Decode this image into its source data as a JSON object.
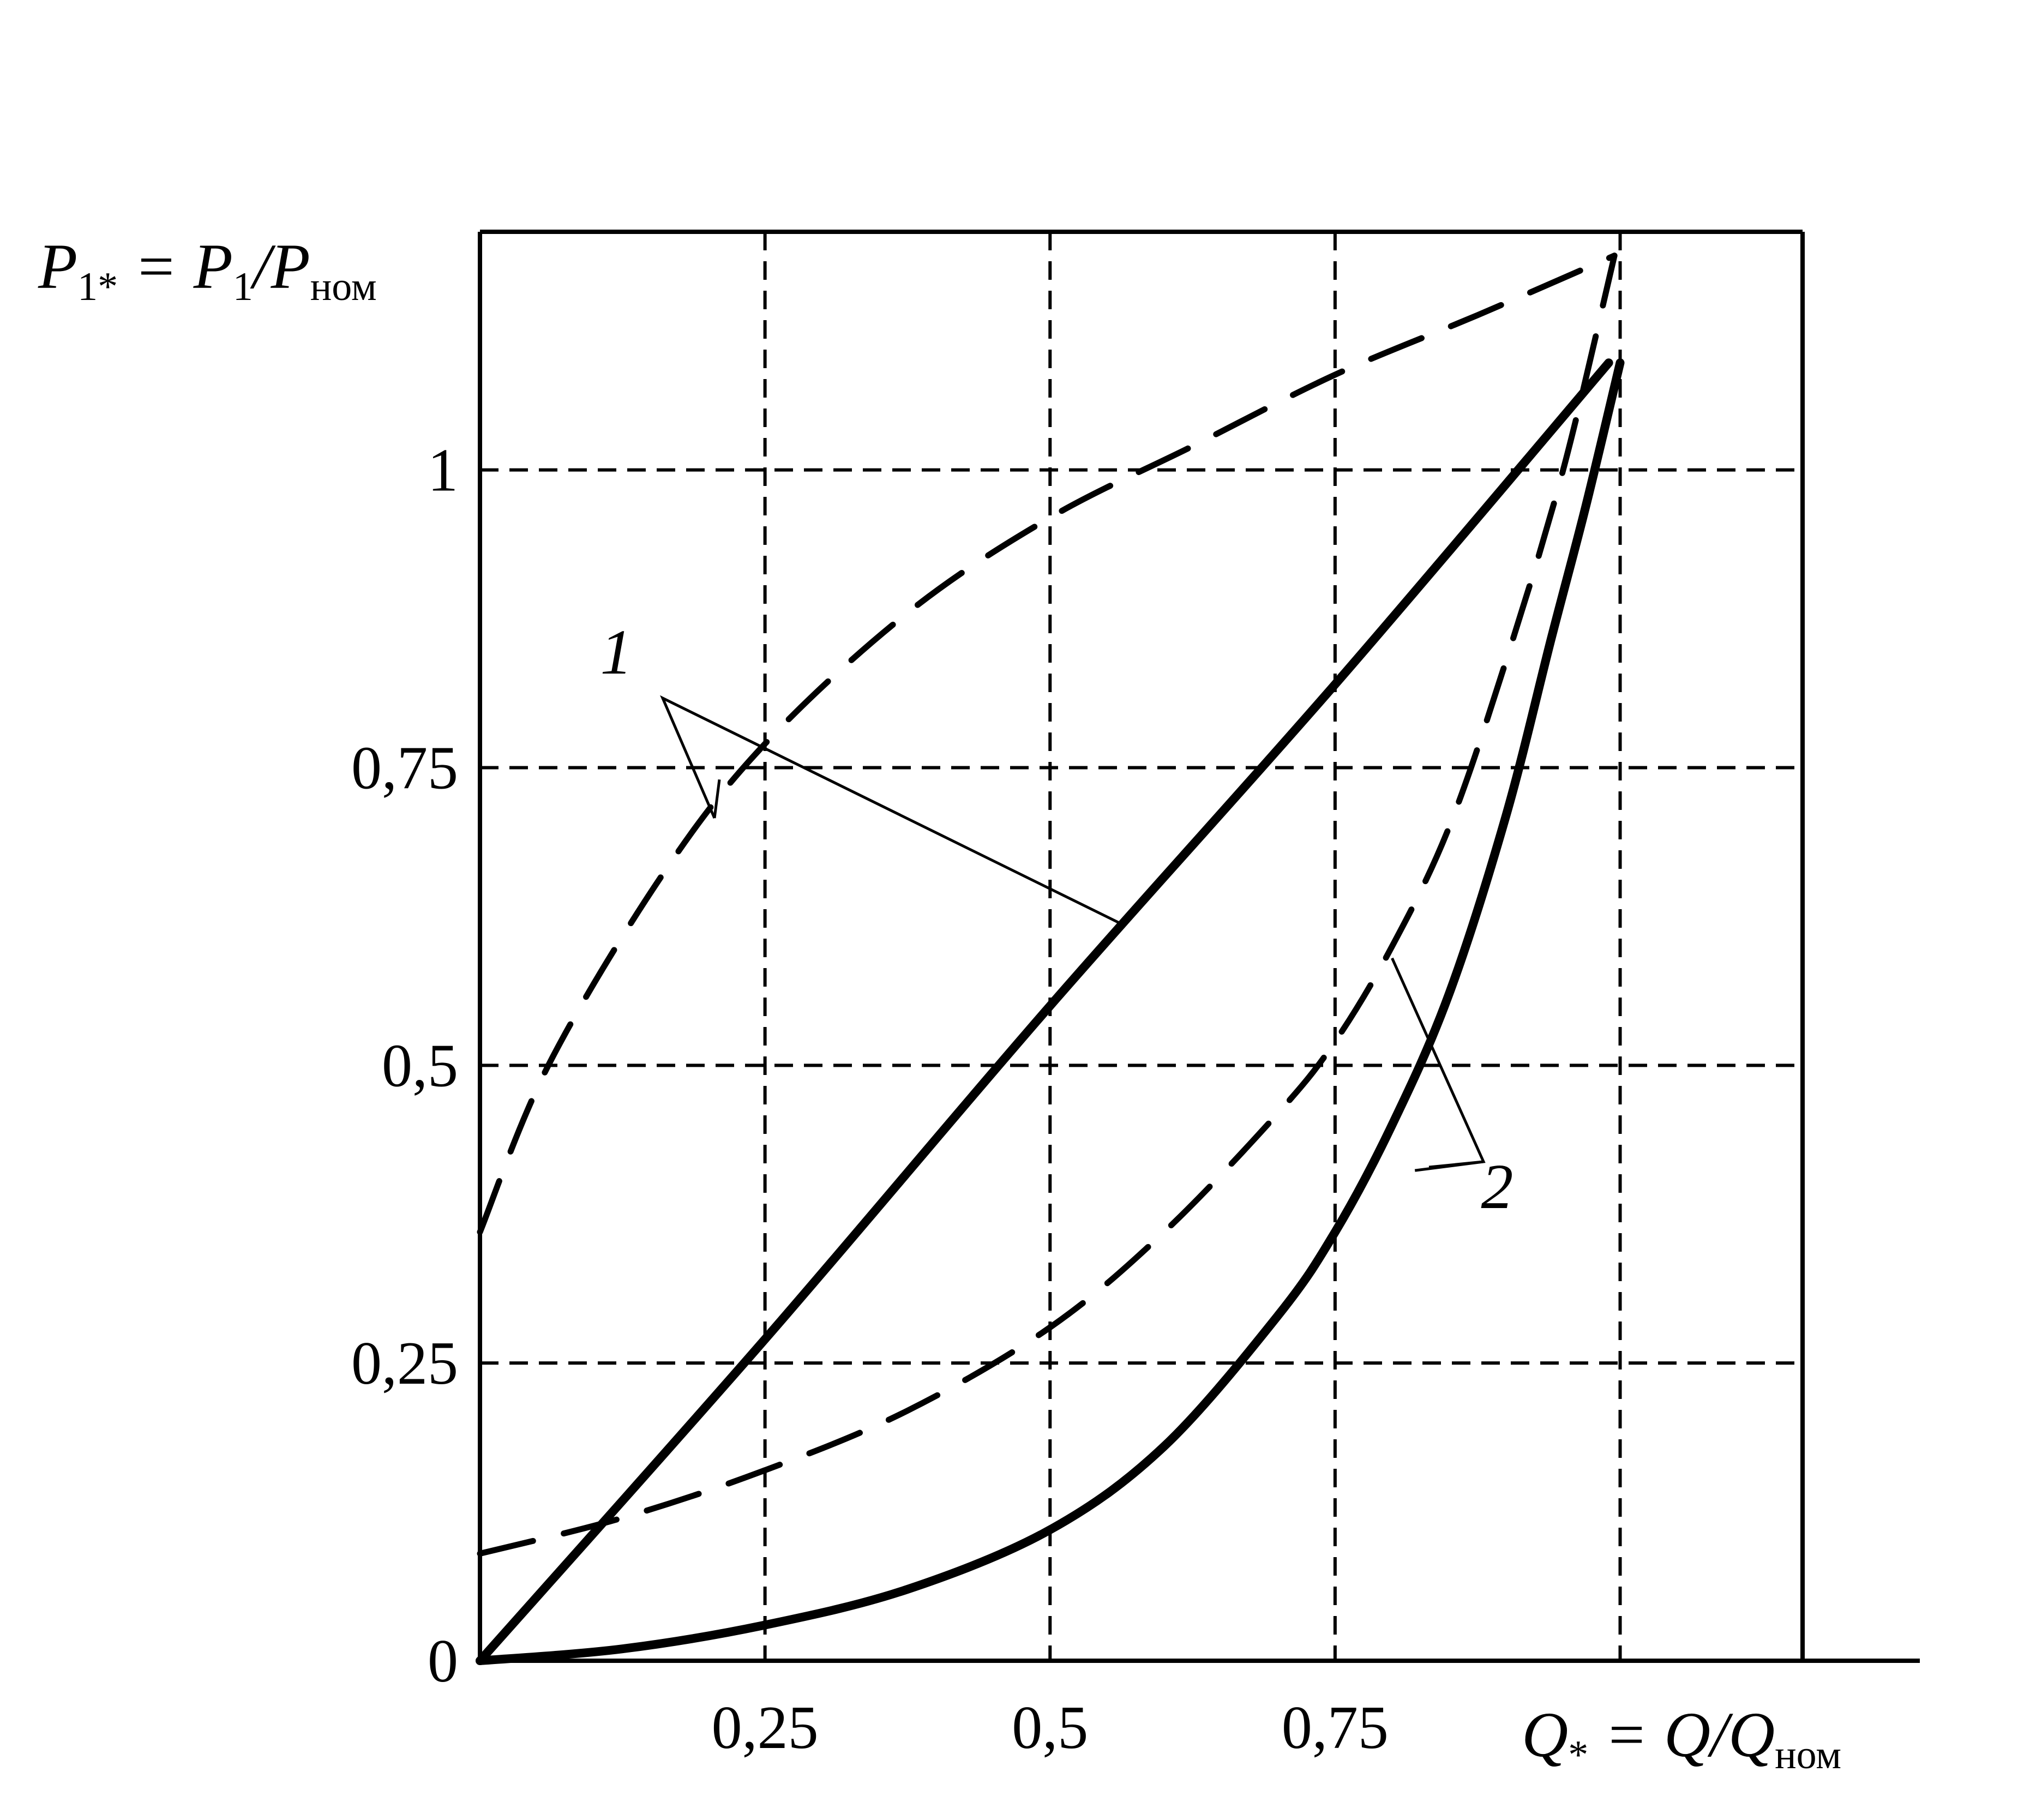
{
  "chart_data": {
    "type": "line",
    "xlabel_parts": {
      "q": "Q",
      "star": "*",
      "eq": " = Q/Q",
      "sub": "ном"
    },
    "ylabel_parts": {
      "p": "P",
      "sub1": "1*",
      "eq": " = P",
      "sub2": "1",
      "slash": "/P",
      "sub3": "ном"
    },
    "xlim": [
      0,
      1.16
    ],
    "ylim": [
      0,
      1.2
    ],
    "x_ticks": [
      {
        "value": 0.25,
        "label": "0,25"
      },
      {
        "value": 0.5,
        "label": "0,5"
      },
      {
        "value": 0.75,
        "label": "0,75"
      }
    ],
    "y_ticks": [
      {
        "value": 0,
        "label": "0"
      },
      {
        "value": 0.25,
        "label": "0,25"
      },
      {
        "value": 0.5,
        "label": "0,5"
      },
      {
        "value": 0.75,
        "label": "0,75"
      },
      {
        "value": 1,
        "label": "1"
      }
    ],
    "grid": true,
    "grid_x": [
      0.25,
      0.5,
      0.75,
      1.0
    ],
    "grid_y": [
      0.25,
      0.5,
      0.75,
      1.0
    ],
    "series": [
      {
        "group": "1",
        "style": "solid",
        "points": [
          [
            0,
            0
          ],
          [
            0.25,
            0.27
          ],
          [
            0.5,
            0.55
          ],
          [
            0.75,
            0.82
          ],
          [
            0.99,
            1.09
          ]
        ]
      },
      {
        "group": "1",
        "style": "dashed",
        "points": [
          [
            0,
            0.36
          ],
          [
            0.06,
            0.5
          ],
          [
            0.16,
            0.66
          ],
          [
            0.25,
            0.77
          ],
          [
            0.375,
            0.88
          ],
          [
            0.5,
            0.96
          ],
          [
            0.625,
            1.02
          ],
          [
            0.75,
            1.08
          ],
          [
            0.875,
            1.13
          ],
          [
            0.995,
            1.18
          ]
        ]
      },
      {
        "group": "2",
        "style": "solid",
        "points": [
          [
            0,
            0
          ],
          [
            0.125,
            0.01
          ],
          [
            0.25,
            0.03
          ],
          [
            0.375,
            0.06
          ],
          [
            0.5,
            0.11
          ],
          [
            0.6,
            0.18
          ],
          [
            0.7,
            0.29
          ],
          [
            0.75,
            0.36
          ],
          [
            0.8,
            0.45
          ],
          [
            0.85,
            0.56
          ],
          [
            0.9,
            0.71
          ],
          [
            0.94,
            0.86
          ],
          [
            0.97,
            0.97
          ],
          [
            1.0,
            1.09
          ]
        ]
      },
      {
        "group": "2",
        "style": "dashed",
        "points": [
          [
            0,
            0.09
          ],
          [
            0.125,
            0.12
          ],
          [
            0.25,
            0.16
          ],
          [
            0.375,
            0.21
          ],
          [
            0.5,
            0.28
          ],
          [
            0.6,
            0.36
          ],
          [
            0.7,
            0.46
          ],
          [
            0.75,
            0.52
          ],
          [
            0.8,
            0.6
          ],
          [
            0.85,
            0.7
          ],
          [
            0.9,
            0.84
          ],
          [
            0.95,
            1.0
          ],
          [
            0.995,
            1.18
          ]
        ]
      }
    ],
    "annotations": [
      {
        "label": "1",
        "pointer_targets": [
          [
            0.21,
            0.74
          ],
          [
            0.56,
            0.62
          ]
        ]
      },
      {
        "label": "2",
        "pointer_targets": [
          [
            0.8,
            0.59
          ],
          [
            0.82,
            0.43
          ]
        ]
      }
    ]
  }
}
